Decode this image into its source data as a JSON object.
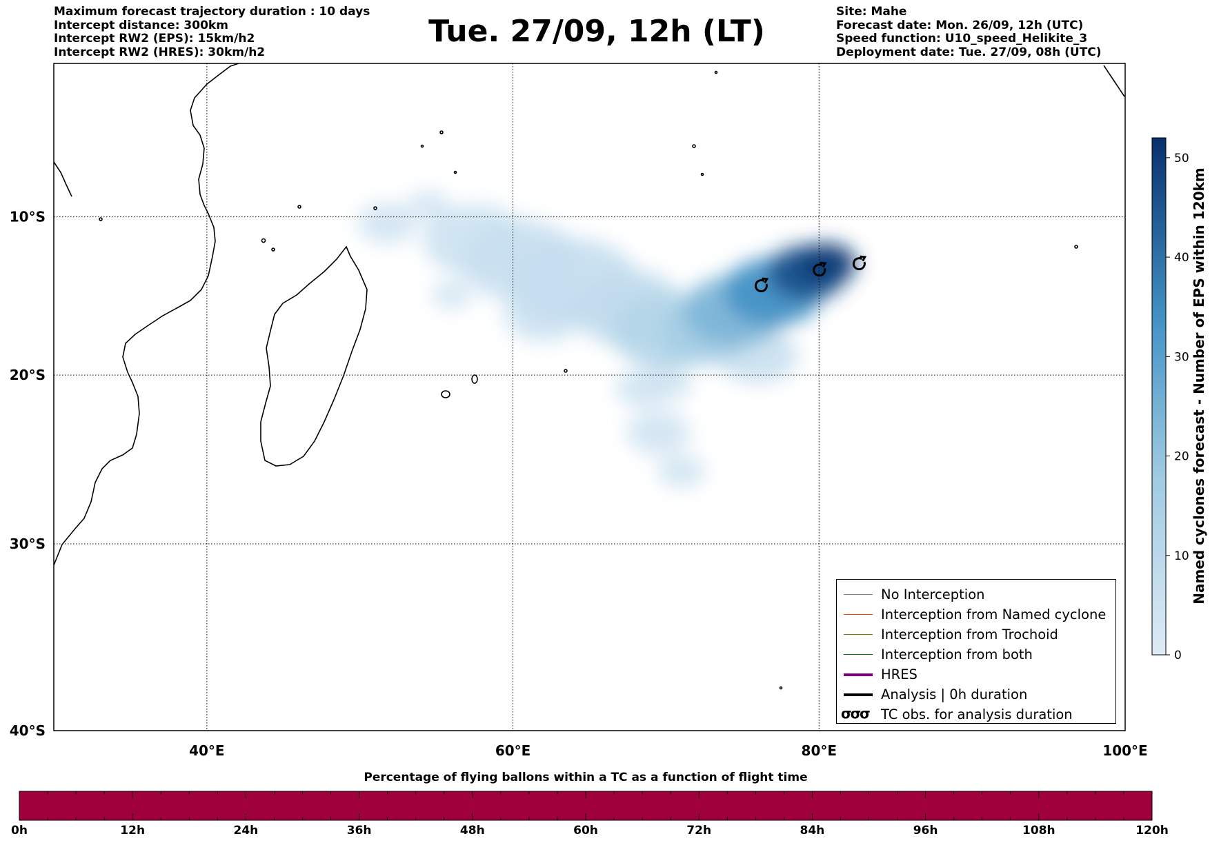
{
  "header": {
    "left": [
      "Maximum forecast trajectory duration : 10 days",
      "Intercept distance: 300km",
      "Intercept RW2 (EPS):  15km/h2",
      "Intercept RW2 (HRES): 30km/h2"
    ],
    "right": [
      "Site: Mahe",
      "Forecast date: Mon. 26/09, 12h (UTC)",
      "Speed function: U10_speed_Helikite_3",
      "Deployment date: Tue. 27/09, 08h (UTC)"
    ],
    "title": "Tue. 27/09, 12h (LT)"
  },
  "map": {
    "lon_range": [
      30,
      100
    ],
    "lat_range": [
      -40,
      0
    ],
    "lon_ticks": [
      {
        "value": 40,
        "label": "40°E"
      },
      {
        "value": 60,
        "label": "60°E"
      },
      {
        "value": 80,
        "label": "80°E"
      },
      {
        "value": 100,
        "label": "100°E"
      }
    ],
    "lat_ticks": [
      {
        "value": -10,
        "label": "10°S"
      },
      {
        "value": -20,
        "label": "20°S"
      },
      {
        "value": -30,
        "label": "30°S"
      },
      {
        "value": -40,
        "label": "40°S"
      }
    ],
    "gridlines": "dotted",
    "density_color": "#08306b",
    "density_blobs": [
      {
        "lon": 54.5,
        "lat": -9.2,
        "r": 1.0,
        "level": 4
      },
      {
        "lon": 51.8,
        "lat": -10.4,
        "r": 1.5,
        "level": 4
      },
      {
        "lon": 57.5,
        "lat": -11.5,
        "r": 2.6,
        "level": 5
      },
      {
        "lon": 60.5,
        "lat": -12.8,
        "r": 3.0,
        "level": 6
      },
      {
        "lon": 64.0,
        "lat": -14.2,
        "r": 3.2,
        "level": 7
      },
      {
        "lon": 56.0,
        "lat": -15.0,
        "r": 1.0,
        "level": 4
      },
      {
        "lon": 62.0,
        "lat": -16.2,
        "r": 2.0,
        "level": 5
      },
      {
        "lon": 67.5,
        "lat": -15.8,
        "r": 2.8,
        "level": 8
      },
      {
        "lon": 70.0,
        "lat": -17.2,
        "r": 2.8,
        "level": 12
      },
      {
        "lon": 72.5,
        "lat": -17.4,
        "r": 2.3,
        "level": 16
      },
      {
        "lon": 74.5,
        "lat": -16.0,
        "r": 2.6,
        "level": 24
      },
      {
        "lon": 77.0,
        "lat": -14.8,
        "r": 2.5,
        "level": 34
      },
      {
        "lon": 79.2,
        "lat": -13.6,
        "r": 2.0,
        "level": 46
      },
      {
        "lon": 80.5,
        "lat": -13.0,
        "r": 1.5,
        "level": 50
      },
      {
        "lon": 76.0,
        "lat": -18.8,
        "r": 2.0,
        "level": 6
      },
      {
        "lon": 68.5,
        "lat": -20.8,
        "r": 1.4,
        "level": 4
      },
      {
        "lon": 70.0,
        "lat": -20.5,
        "r": 1.3,
        "level": 4
      },
      {
        "lon": 69.5,
        "lat": -23.5,
        "r": 1.6,
        "level": 4
      },
      {
        "lon": 71.0,
        "lat": -25.8,
        "r": 1.2,
        "level": 4
      }
    ],
    "tc_obs": [
      {
        "lon": 76.2,
        "lat": -14.3
      },
      {
        "lon": 80.0,
        "lat": -13.3
      },
      {
        "lon": 82.6,
        "lat": -12.9
      }
    ]
  },
  "legend": [
    {
      "label": "No Interception",
      "color": "#808080",
      "width": 1
    },
    {
      "label": "Interception from Named cyclone",
      "color": "#ff4500",
      "width": 1
    },
    {
      "label": "Interception from Trochoid",
      "color": "#808000",
      "width": 1
    },
    {
      "label": "Interception from both",
      "color": "#008000",
      "width": 1
    },
    {
      "label": "HRES",
      "color": "#800080",
      "width": 4
    },
    {
      "label": "Analysis | 0h duration",
      "color": "#000000",
      "width": 4
    },
    {
      "label": "TC obs. for analysis duration",
      "color": "#000000",
      "width": 0,
      "icon": "tc-symbol-icon"
    }
  ],
  "colorbar": {
    "label": "Named cyclones forecast - Number of EPS within 120km",
    "min": 0,
    "max": 52,
    "ticks": [
      0,
      10,
      20,
      30,
      40,
      50
    ],
    "color_low": "#deebf7",
    "color_high": "#08306b"
  },
  "timebar": {
    "title": "Percentage of flying ballons within a TC as a function of flight time",
    "color": "#a0003c",
    "range_hours": [
      0,
      120
    ],
    "ticks": [
      "0h",
      "12h",
      "24h",
      "36h",
      "48h",
      "60h",
      "72h",
      "84h",
      "96h",
      "108h",
      "120h"
    ]
  }
}
